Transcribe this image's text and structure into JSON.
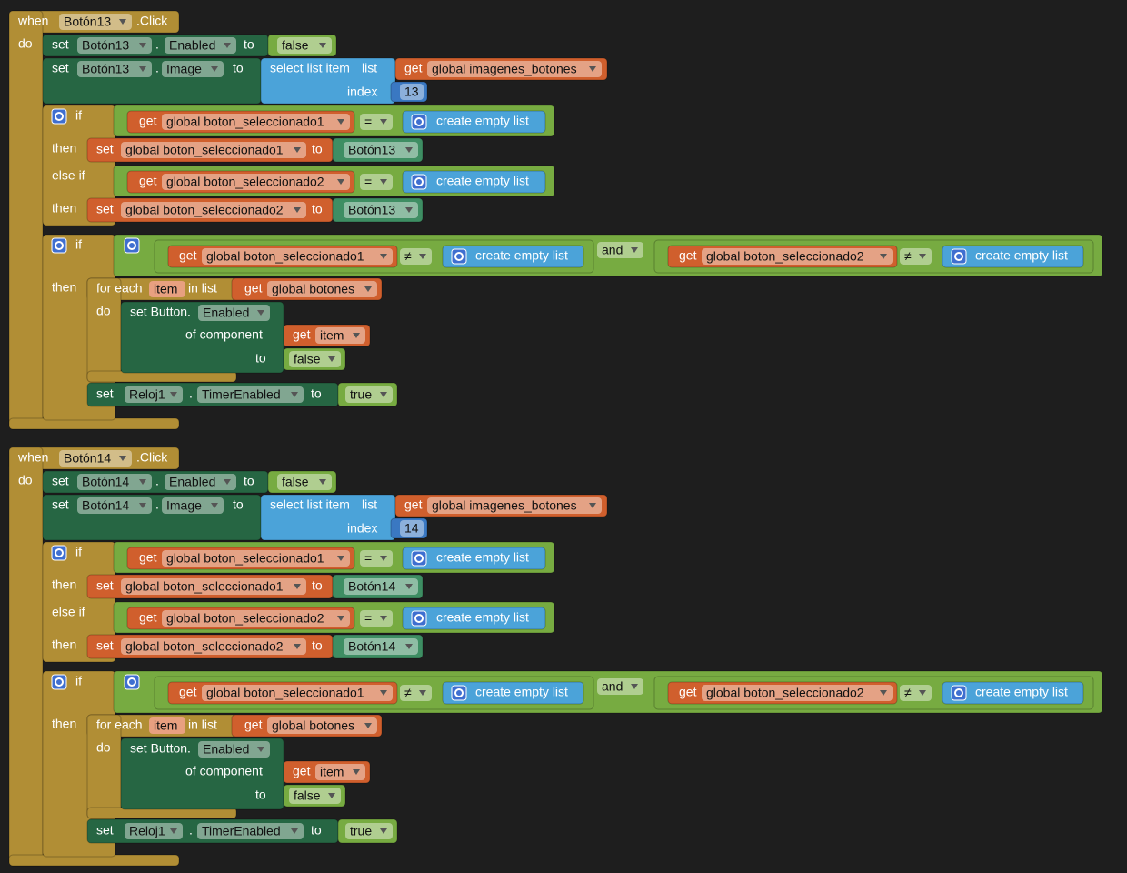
{
  "handlers": [
    {
      "when": "when",
      "component": "Botón13",
      "event": ".Click",
      "do": "do",
      "statements": [
        {
          "set": "set",
          "component": "Botón13",
          "dot": ".",
          "property": "Enabled",
          "to": "to",
          "value": "false"
        },
        {
          "set": "set",
          "component": "Botón13",
          "dot": ".",
          "property": "Image",
          "to": "to",
          "select": "select list item",
          "list": "list",
          "get": "get",
          "variable": "global imagenes_botones",
          "index_label": "index",
          "index": 13
        },
        {
          "if": "if",
          "condition": {
            "get": "get",
            "variable": "global boton_seleccionado1",
            "operator": "=",
            "list": "create empty list"
          },
          "then": "then",
          "action": {
            "set": "set",
            "variable": "global boton_seleccionado1",
            "to": "to",
            "value": "Botón13"
          },
          "else_if": "else if",
          "condition2": {
            "get": "get",
            "variable": "global boton_seleccionado2",
            "operator": "=",
            "list": "create empty list"
          },
          "then2": "then",
          "action2": {
            "set": "set",
            "variable": "global boton_seleccionado2",
            "to": "to",
            "value": "Botón13"
          }
        },
        {
          "if": "if",
          "condition": {
            "left": {
              "get": "get",
              "variable": "global boton_seleccionado1",
              "operator": "≠",
              "list": "create empty list"
            },
            "operator": "and",
            "right": {
              "get": "get",
              "variable": "global boton_seleccionado2",
              "operator": "≠",
              "list": "create empty list"
            }
          },
          "then": "then",
          "for_each": {
            "for_each": "for each",
            "item": "item",
            "in_list": "in list",
            "get": "get",
            "variable": "global botones",
            "do": "do",
            "body": {
              "set": "set Button.",
              "property": "Enabled",
              "of_component": "of component",
              "get": "get",
              "item": "item",
              "to": "to",
              "value": "false"
            }
          },
          "timer": {
            "set": "set",
            "component": "Reloj1",
            "dot": ".",
            "property": "TimerEnabled",
            "to": "to",
            "value": "true"
          }
        }
      ]
    },
    {
      "when": "when",
      "component": "Botón14",
      "event": ".Click",
      "do": "do",
      "statements": [
        {
          "set": "set",
          "component": "Botón14",
          "dot": ".",
          "property": "Enabled",
          "to": "to",
          "value": "false"
        },
        {
          "set": "set",
          "component": "Botón14",
          "dot": ".",
          "property": "Image",
          "to": "to",
          "select": "select list item",
          "list": "list",
          "get": "get",
          "variable": "global imagenes_botones",
          "index_label": "index",
          "index": 14
        },
        {
          "if": "if",
          "condition": {
            "get": "get",
            "variable": "global boton_seleccionado1",
            "operator": "=",
            "list": "create empty list"
          },
          "then": "then",
          "action": {
            "set": "set",
            "variable": "global boton_seleccionado1",
            "to": "to",
            "value": "Botón14"
          },
          "else_if": "else if",
          "condition2": {
            "get": "get",
            "variable": "global boton_seleccionado2",
            "operator": "=",
            "list": "create empty list"
          },
          "then2": "then",
          "action2": {
            "set": "set",
            "variable": "global boton_seleccionado2",
            "to": "to",
            "value": "Botón14"
          }
        },
        {
          "if": "if",
          "condition": {
            "left": {
              "get": "get",
              "variable": "global boton_seleccionado1",
              "operator": "≠",
              "list": "create empty list"
            },
            "operator": "and",
            "right": {
              "get": "get",
              "variable": "global boton_seleccionado2",
              "operator": "≠",
              "list": "create empty list"
            }
          },
          "then": "then",
          "for_each": {
            "for_each": "for each",
            "item": "item",
            "in_list": "in list",
            "get": "get",
            "variable": "global botones",
            "do": "do",
            "body": {
              "set": "set Button.",
              "property": "Enabled",
              "of_component": "of component",
              "get": "get",
              "item": "item",
              "to": "to",
              "value": "false"
            }
          },
          "timer": {
            "set": "set",
            "component": "Reloj1",
            "dot": ".",
            "property": "TimerEnabled",
            "to": "to",
            "value": "true"
          }
        }
      ]
    }
  ]
}
